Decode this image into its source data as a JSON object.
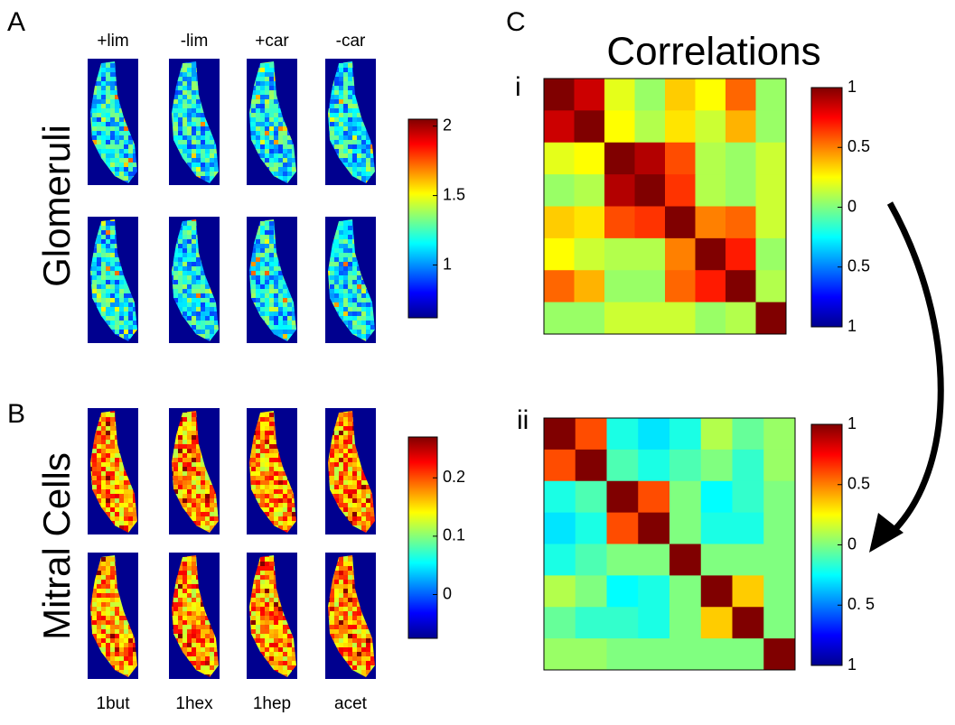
{
  "panels": {
    "A": {
      "label": "A",
      "ylabel": "Glomeruli",
      "columns": [
        "+lim",
        "-lim",
        "+car",
        "-car"
      ],
      "colorbar": {
        "lim": [
          0.62,
          2.05
        ],
        "ticks": [
          2,
          1.5,
          1
        ]
      }
    },
    "B": {
      "label": "B",
      "ylabel": "Mitral Cells",
      "columns": [
        "1but",
        "1hex",
        "1hep",
        "acet"
      ],
      "colorbar": {
        "lim": [
          -0.075,
          0.27
        ],
        "ticks": [
          0.2,
          0.1,
          0
        ]
      }
    },
    "C": {
      "label": "C",
      "title": "Correlations",
      "matrices": [
        {
          "label": "i",
          "values": [
            [
              1,
              0.85,
              0.2,
              0.05,
              0.35,
              0.25,
              0.55,
              0.05
            ],
            [
              0.85,
              1,
              0.25,
              0.1,
              0.3,
              0.15,
              0.4,
              0.05
            ],
            [
              0.2,
              0.25,
              1,
              0.9,
              0.6,
              0.1,
              0.05,
              0.15
            ],
            [
              0.05,
              0.1,
              0.9,
              1,
              0.65,
              0.1,
              0.05,
              0.15
            ],
            [
              0.35,
              0.3,
              0.6,
              0.65,
              1,
              0.5,
              0.55,
              0.15
            ],
            [
              0.25,
              0.15,
              0.1,
              0.1,
              0.5,
              1,
              0.7,
              0.05
            ],
            [
              0.55,
              0.4,
              0.05,
              0.05,
              0.55,
              0.7,
              1,
              0.1
            ],
            [
              0.05,
              0.05,
              0.15,
              0.15,
              0.15,
              0.05,
              0.1,
              1
            ]
          ],
          "colorbar": {
            "lim": [
              -1,
              1
            ],
            "ticks": [
              1,
              0.5,
              0,
              {
                "value": -0.5,
                "label": "0.5"
              },
              {
                "value": -1,
                "label": "1"
              }
            ]
          }
        },
        {
          "label": "ii",
          "values": [
            [
              1,
              0.6,
              -0.2,
              -0.3,
              -0.2,
              0.1,
              -0.05,
              0.05
            ],
            [
              0.6,
              1,
              -0.1,
              -0.2,
              -0.1,
              0,
              -0.15,
              0.05
            ],
            [
              -0.2,
              -0.1,
              1,
              0.6,
              0,
              -0.25,
              -0.15,
              0
            ],
            [
              -0.3,
              -0.2,
              0.6,
              1,
              0,
              -0.2,
              -0.2,
              0
            ],
            [
              -0.2,
              -0.1,
              0,
              0,
              1,
              0,
              0,
              0
            ],
            [
              0.1,
              0,
              -0.25,
              -0.2,
              0,
              1,
              0.35,
              0
            ],
            [
              -0.05,
              -0.15,
              -0.15,
              -0.2,
              0,
              0.35,
              1,
              0
            ],
            [
              0.05,
              0.05,
              0,
              0,
              0,
              0,
              0,
              1
            ]
          ],
          "colorbar": {
            "lim": [
              -1,
              1
            ],
            "ticks": [
              1,
              0.5,
              0,
              {
                "value": -0.5,
                "label": "0. 5"
              },
              {
                "value": -1,
                "label": "1"
              }
            ]
          }
        }
      ]
    }
  }
}
